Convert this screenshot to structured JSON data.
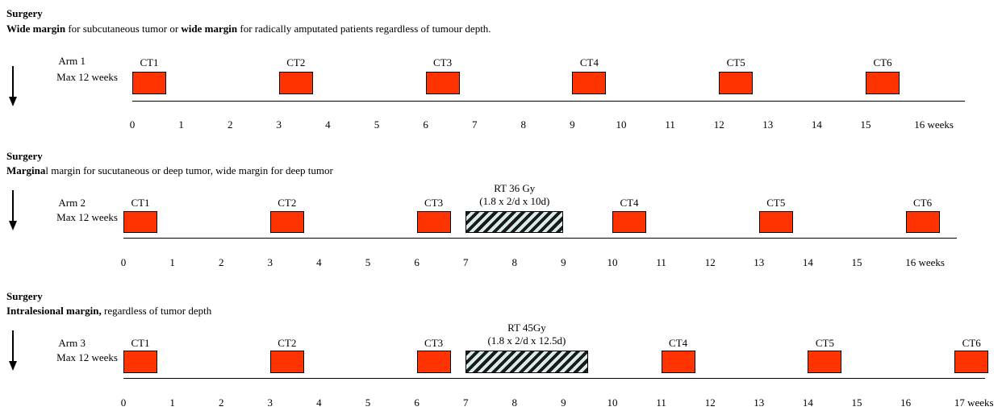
{
  "sections": [
    {
      "title": "Surgery",
      "desc_bold1": "Wide margin",
      "desc_text1": " for subcutaneous tumor or ",
      "desc_bold2": "wide margin",
      "desc_text2": " for radically amputated patients regardless of tumour depth.",
      "arm_label": "Arm 1",
      "arm_sub": "Max 12 weeks",
      "ticks": [
        "0",
        "1",
        "2",
        "3",
        "4",
        "5",
        "6",
        "7",
        "8",
        "9",
        "10",
        "11",
        "12",
        "13",
        "14",
        "15",
        "16 weeks"
      ],
      "cts": [
        {
          "label": "CT1",
          "week": 0
        },
        {
          "label": "CT2",
          "week": 3
        },
        {
          "label": "CT3",
          "week": 6
        },
        {
          "label": "CT4",
          "week": 9
        },
        {
          "label": "CT5",
          "week": 12
        },
        {
          "label": "CT6",
          "week": 15
        }
      ]
    },
    {
      "title": "Surgery",
      "desc_bold1": "Margina",
      "desc_text1": "l  margin  for  sucutaneous or deep tumor, wide margin for deep tumor",
      "desc_bold2": "",
      "desc_text2": "",
      "arm_label": "Arm 2",
      "arm_sub": "Max 12 weeks",
      "ticks": [
        "0",
        "1",
        "2",
        "3",
        "4",
        "5",
        "6",
        "7",
        "8",
        "9",
        "10",
        "11",
        "12",
        "13",
        "14",
        "15",
        "16 weeks"
      ],
      "cts": [
        {
          "label": "CT1",
          "week": 0
        },
        {
          "label": "CT2",
          "week": 3
        },
        {
          "label": "CT3",
          "week": 6
        },
        {
          "label": "CT4",
          "week": 10
        },
        {
          "label": "CT5",
          "week": 13
        },
        {
          "label": "CT6",
          "week": 16
        }
      ],
      "rt": {
        "line1": "RT 36 Gy",
        "line2": "(1.8 x 2/d x 10d)",
        "start_week": 7,
        "end_week": 9
      }
    },
    {
      "title": "Surgery",
      "desc_bold1": "Intralesional margin,",
      "desc_text1": " regardless of tumor depth",
      "desc_bold2": "",
      "desc_text2": "",
      "arm_label": "Arm 3",
      "arm_sub": "Max 12 weeks",
      "ticks": [
        "0",
        "1",
        "2",
        "3",
        "4",
        "5",
        "6",
        "7",
        "8",
        "9",
        "10",
        "11",
        "12",
        "13",
        "14",
        "15",
        "16",
        "17 weeks"
      ],
      "cts": [
        {
          "label": "CT1",
          "week": 0
        },
        {
          "label": "CT2",
          "week": 3
        },
        {
          "label": "CT3",
          "week": 6
        },
        {
          "label": "CT4",
          "week": 11
        },
        {
          "label": "CT5",
          "week": 14
        },
        {
          "label": "CT6",
          "week": 17
        }
      ],
      "rt": {
        "line1": "RT 45Gy",
        "line2": "(1.8 x 2/d x 12.5d)",
        "start_week": 7,
        "end_week": 9.5
      }
    }
  ]
}
